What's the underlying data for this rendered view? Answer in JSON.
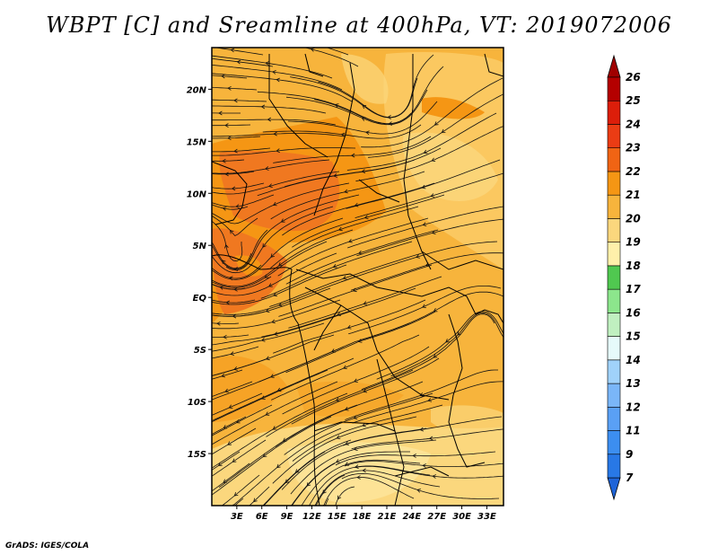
{
  "title": "WBPT [C] and Sreamline at 400hPa, VT: 2019072006",
  "credit": "GrADS: IGES/COLA",
  "chart_data": {
    "type": "heatmap",
    "variable": "Wet-bulb potential temperature",
    "overlay": "streamlines",
    "level": "400hPa",
    "valid_time": "2019072006",
    "lon_range": [
      0,
      35
    ],
    "lat_range": [
      -20,
      24
    ],
    "x_ticks": [
      {
        "value": 3,
        "label": "3E"
      },
      {
        "value": 6,
        "label": "6E"
      },
      {
        "value": 9,
        "label": "9E"
      },
      {
        "value": 12,
        "label": "12E"
      },
      {
        "value": 15,
        "label": "15E"
      },
      {
        "value": 18,
        "label": "18E"
      },
      {
        "value": 21,
        "label": "21E"
      },
      {
        "value": 24,
        "label": "24E"
      },
      {
        "value": 27,
        "label": "27E"
      },
      {
        "value": 30,
        "label": "30E"
      },
      {
        "value": 33,
        "label": "33E"
      }
    ],
    "y_ticks": [
      {
        "value": 20,
        "label": "20N"
      },
      {
        "value": 15,
        "label": "15N"
      },
      {
        "value": 10,
        "label": "10N"
      },
      {
        "value": 5,
        "label": "5N"
      },
      {
        "value": 0,
        "label": "EQ"
      },
      {
        "value": -5,
        "label": "5S"
      },
      {
        "value": -10,
        "label": "10S"
      },
      {
        "value": -15,
        "label": "15S"
      }
    ],
    "colorbar": {
      "labels": [
        "7",
        "9",
        "11",
        "12",
        "13",
        "14",
        "15",
        "16",
        "17",
        "18",
        "19",
        "20",
        "21",
        "22",
        "23",
        "24",
        "25",
        "26"
      ],
      "colors": [
        "#1e64d8",
        "#2878e6",
        "#3c8ef0",
        "#5aa0f5",
        "#7ab6f8",
        "#a0d2fa",
        "#e6fafa",
        "#c0f0c0",
        "#8ce68c",
        "#50c850",
        "#fff0aa",
        "#fbd77d",
        "#f7b43c",
        "#f59614",
        "#f06414",
        "#eb3c14",
        "#dc1e0a",
        "#b40000",
        "#a00000"
      ]
    }
  }
}
